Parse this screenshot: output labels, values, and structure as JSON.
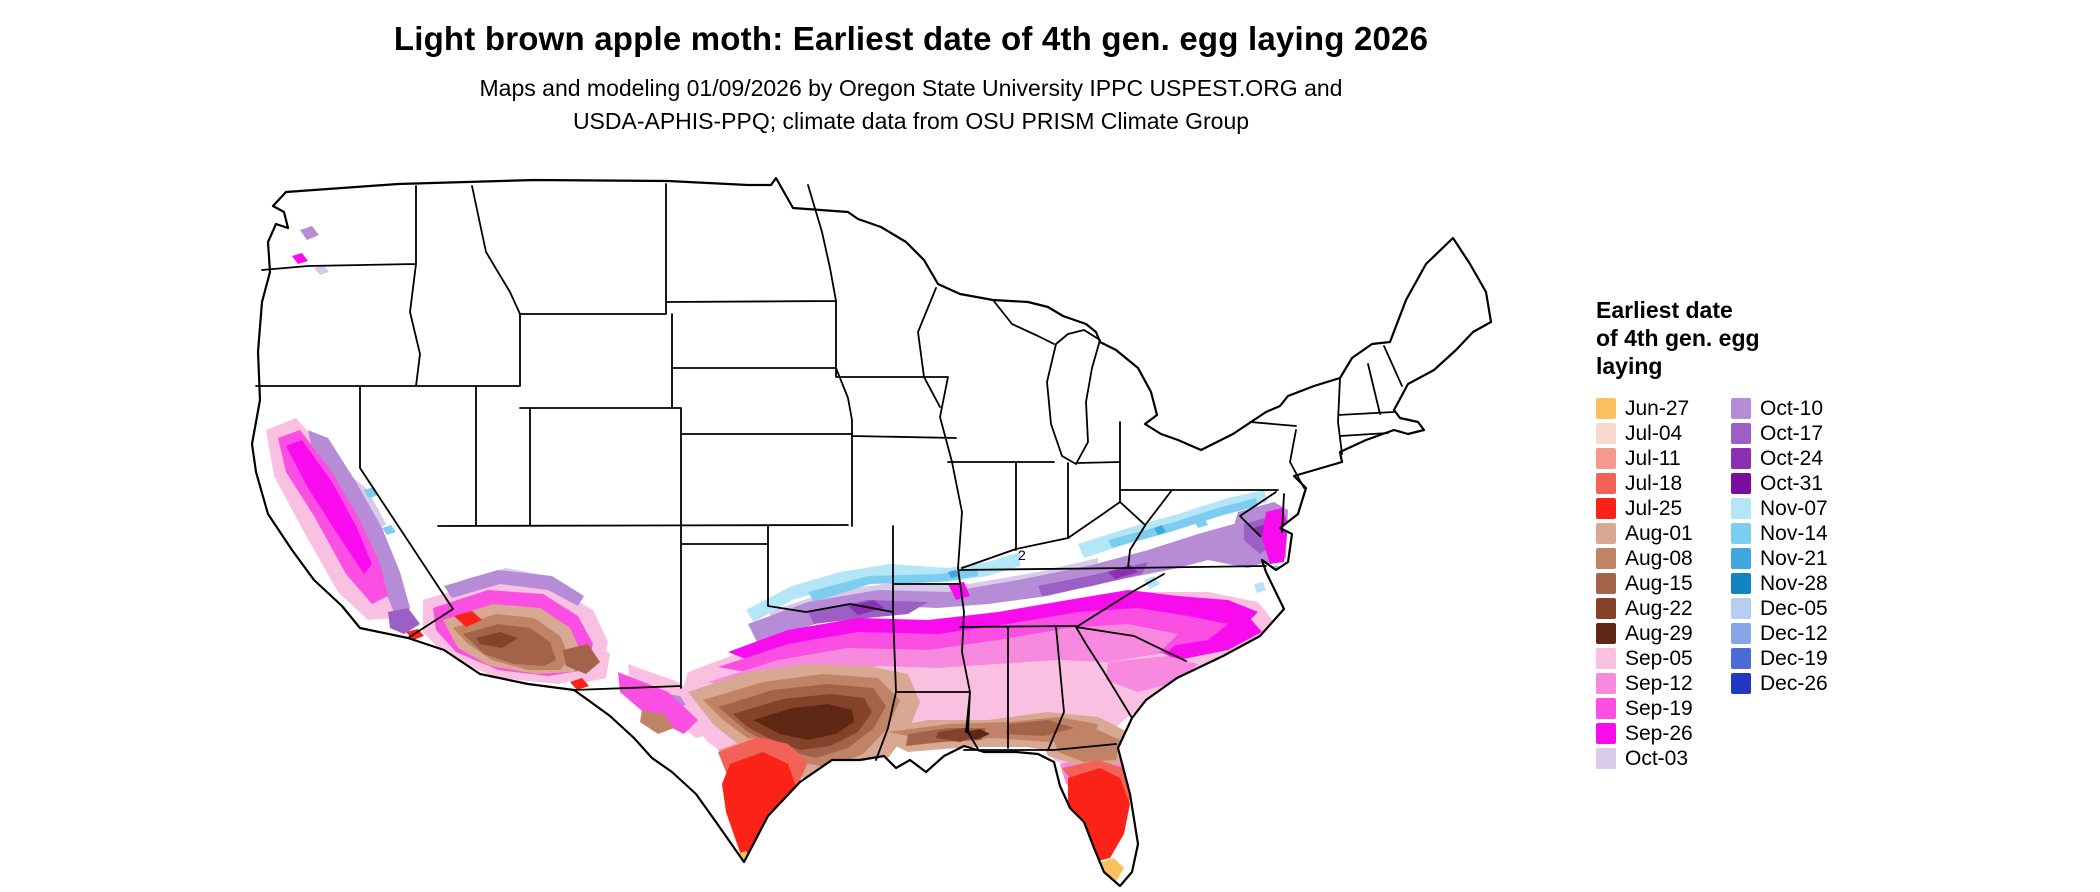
{
  "header": {
    "title": "Light brown apple moth: Earliest date of 4th gen. egg laying 2026",
    "subtitle_line1": "Maps and modeling 01/09/2026 by Oregon State University IPPC USPEST.ORG and",
    "subtitle_line2": "USDA-APHIS-PPQ; climate data from OSU PRISM Climate Group"
  },
  "legend": {
    "title_lines": [
      "Earliest date",
      "of 4th gen. egg",
      "laying"
    ],
    "columns": [
      {
        "items": [
          {
            "label": "Jun-27",
            "color": "#FBC161"
          },
          {
            "label": "Jul-04",
            "color": "#F7D9CD"
          },
          {
            "label": "Jul-11",
            "color": "#F4998C"
          },
          {
            "label": "Jul-18",
            "color": "#F26257"
          },
          {
            "label": "Jul-25",
            "color": "#FB2318"
          },
          {
            "label": "Aug-01",
            "color": "#D9A893"
          },
          {
            "label": "Aug-08",
            "color": "#C08365"
          },
          {
            "label": "Aug-15",
            "color": "#A3634A"
          },
          {
            "label": "Aug-22",
            "color": "#84422A"
          },
          {
            "label": "Aug-29",
            "color": "#5E2814"
          },
          {
            "label": "Sep-05",
            "color": "#F9C0E2"
          },
          {
            "label": "Sep-12",
            "color": "#F78ADF"
          },
          {
            "label": "Sep-19",
            "color": "#FB4FE4"
          },
          {
            "label": "Sep-26",
            "color": "#F80CEE"
          },
          {
            "label": "Oct-03",
            "color": "#D9C9EA"
          }
        ]
      },
      {
        "items": [
          {
            "label": "Oct-10",
            "color": "#B68CD6"
          },
          {
            "label": "Oct-17",
            "color": "#9C5FC6"
          },
          {
            "label": "Oct-24",
            "color": "#8C2FB2"
          },
          {
            "label": "Oct-31",
            "color": "#7A0D9E"
          },
          {
            "label": "Nov-07",
            "color": "#B4E6F8"
          },
          {
            "label": "Nov-14",
            "color": "#7CCDEF"
          },
          {
            "label": "Nov-21",
            "color": "#3FA8DE"
          },
          {
            "label": "Nov-28",
            "color": "#1284C2"
          },
          {
            "label": "Dec-05",
            "color": "#B9CDF2"
          },
          {
            "label": "Dec-12",
            "color": "#86A6E8"
          },
          {
            "label": "Dec-19",
            "color": "#4C6AD8"
          },
          {
            "label": "Dec-26",
            "color": "#2238C4"
          }
        ]
      }
    ]
  },
  "map": {
    "region": "Contiguous United States",
    "outline_color": "#000000",
    "land_color": "#FFFFFF",
    "point_label": "2"
  }
}
